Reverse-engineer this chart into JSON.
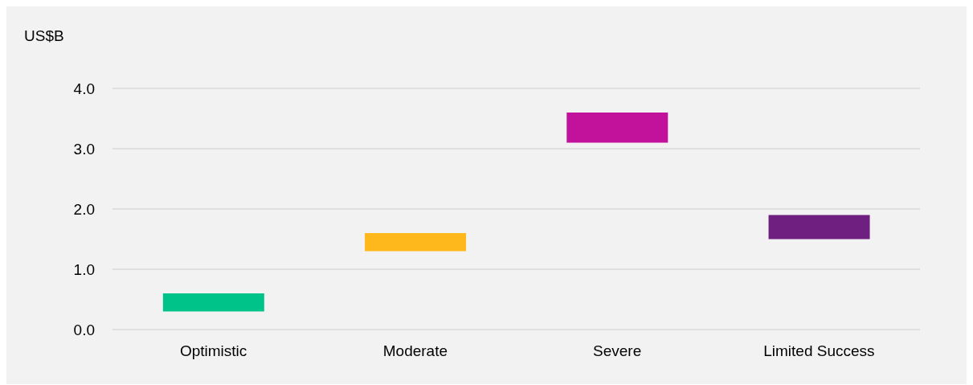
{
  "chart_data": {
    "type": "bar",
    "ylabel": "US$B",
    "categories": [
      "Optimistic",
      "Moderate",
      "Severe",
      "Limited Success"
    ],
    "base": [
      0.3,
      1.3,
      3.1,
      1.5
    ],
    "values": [
      0.3,
      0.3,
      0.5,
      0.4
    ],
    "colors": [
      "#00c389",
      "#ffb81c",
      "#c2119b",
      "#6f1f7f"
    ],
    "ylim": [
      0,
      4
    ],
    "yticks": [
      {
        "value": 0,
        "label": "0.0"
      },
      {
        "value": 1,
        "label": "1.0"
      },
      {
        "value": 2,
        "label": "2.0"
      },
      {
        "value": 3,
        "label": "3.0"
      },
      {
        "value": 4,
        "label": "4.0"
      }
    ],
    "grid": "y"
  }
}
